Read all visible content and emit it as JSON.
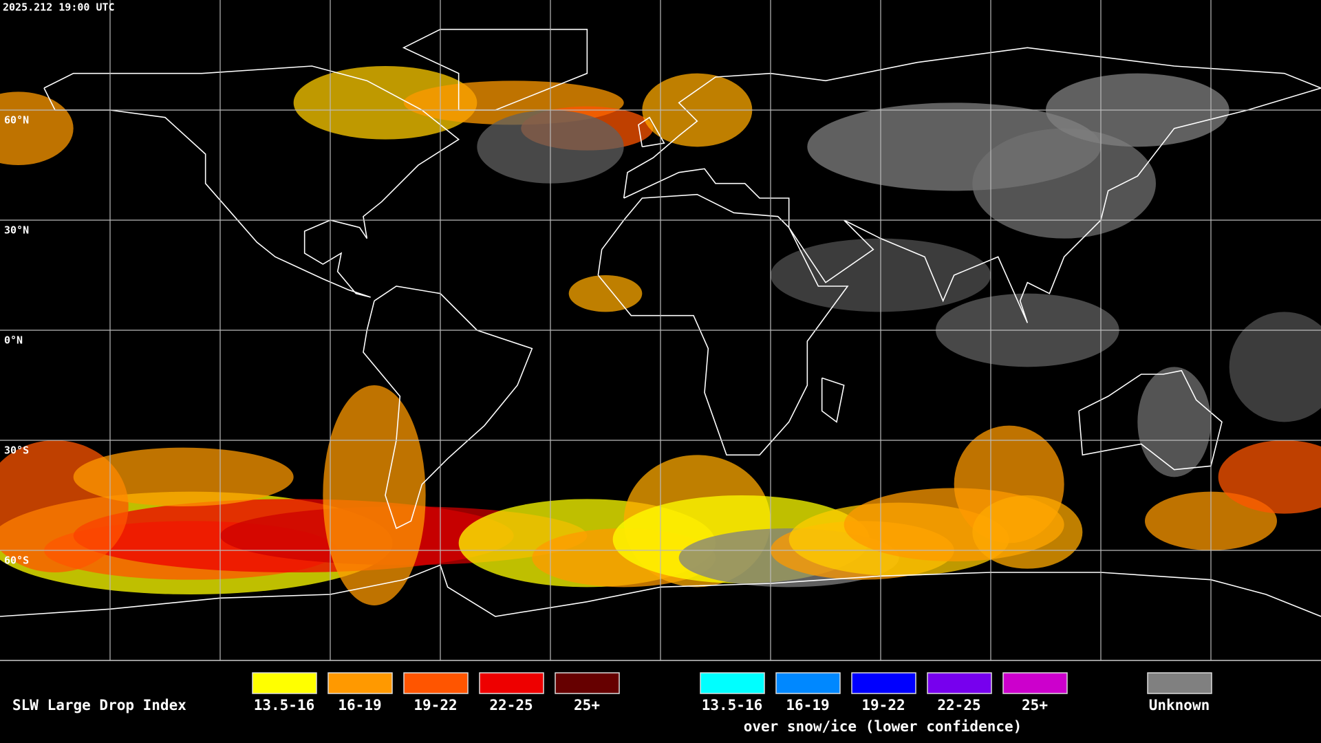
{
  "header": {
    "timestamp": "2025.212 19:00 UTC"
  },
  "map": {
    "latitude_labels": [
      "60°N",
      "30°N",
      "0°N",
      "30°S",
      "60°S"
    ]
  },
  "legend": {
    "title": "SLW Large Drop Index",
    "groups": [
      {
        "items": [
          {
            "label": "13.5-16",
            "color": "#ffff00"
          },
          {
            "label": "16-19",
            "color": "#ff9900"
          },
          {
            "label": "19-22",
            "color": "#ff5500"
          },
          {
            "label": "22-25",
            "color": "#ee0000"
          },
          {
            "label": "25+",
            "color": "#660000"
          }
        ]
      },
      {
        "items": [
          {
            "label": "13.5-16",
            "color": "#00ffff"
          },
          {
            "label": "16-19",
            "color": "#0088ff"
          },
          {
            "label": "19-22",
            "color": "#0000ff"
          },
          {
            "label": "22-25",
            "color": "#7700ee"
          },
          {
            "label": "25+",
            "color": "#cc00cc"
          }
        ],
        "caption": "over snow/ice (lower confidence)"
      }
    ],
    "unknown": {
      "label": "Unknown",
      "color": "#808080"
    }
  }
}
